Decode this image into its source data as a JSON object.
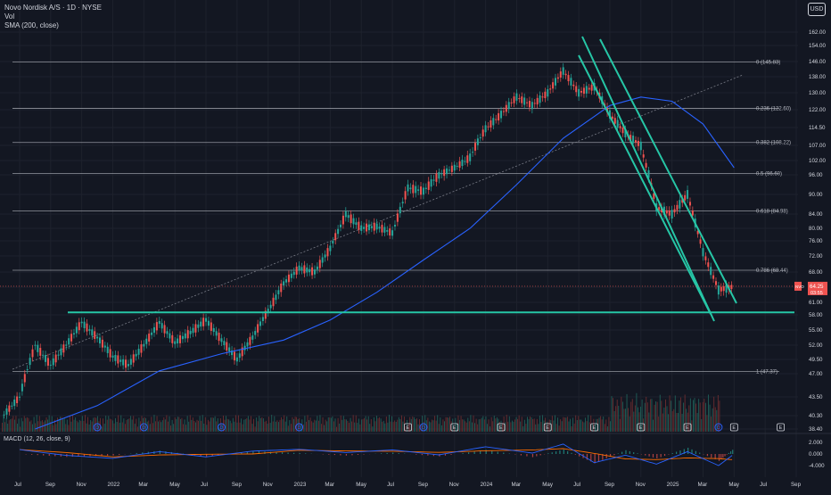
{
  "header": {
    "symbol_title": "Novo Nordisk A/S · 1D · NYSE",
    "vol_label": "Vol",
    "sma_label": "SMA (200, close)",
    "currency_button": "USD",
    "macd_label": "MACD (12, 26, close, 9)"
  },
  "colors": {
    "background": "#131722",
    "up_candle": "#26a69a",
    "down_candle": "#ef5350",
    "sma_line": "#2962ff",
    "fib_line": "#b2b5be",
    "channel_lines": "#26c6a6",
    "support_line": "#26c6a6",
    "trend_line": "#787b86",
    "macd_line": "#2962ff",
    "signal_line": "#ff6d00",
    "price_label_bg": "#ef5350"
  },
  "chart_data": {
    "type": "candlestick",
    "title": "Novo Nordisk A/S · 1D · NYSE",
    "price_scale_ticks": [
      "162.00",
      "154.00",
      "146.00",
      "138.00",
      "130.00",
      "122.00",
      "114.50",
      "107.00",
      "102.00",
      "96.00",
      "90.00",
      "84.00",
      "80.00",
      "76.00",
      "72.00",
      "68.00",
      "64.00",
      "61.00",
      "58.00",
      "55.00",
      "52.00",
      "49.50",
      "47.00",
      "43.50",
      "40.30",
      "38.40"
    ],
    "time_axis_labels": [
      "Jul",
      "Sep",
      "Nov",
      "2022",
      "Mar",
      "May",
      "Jul",
      "Sep",
      "Nov",
      "2023",
      "Mar",
      "May",
      "Jul",
      "Sep",
      "Nov",
      "2024",
      "Mar",
      "May",
      "Jul",
      "Sep",
      "Nov",
      "2025",
      "Mar",
      "May",
      "Jul",
      "Sep"
    ],
    "fibonacci_levels": [
      {
        "label": "0 (145.83)",
        "price": 145.83
      },
      {
        "label": "0.236 (122.60)",
        "price": 122.6
      },
      {
        "label": "0.382 (108.22)",
        "price": 108.22
      },
      {
        "label": "0.5 (96.60)",
        "price": 96.6
      },
      {
        "label": "0.618 (84.98)",
        "price": 84.98
      },
      {
        "label": "0.786 (68.44)",
        "price": 68.44
      },
      {
        "label": "1 (47.37)",
        "price": 47.37
      }
    ],
    "support_level": 58.6,
    "last_price": {
      "ticker": "NVO",
      "price": "64.25",
      "countdown": "03:55"
    },
    "price_series": [
      {
        "date": "2021-06",
        "close": 40.5
      },
      {
        "date": "2021-07",
        "close": 43.5
      },
      {
        "date": "2021-08",
        "close": 52.0
      },
      {
        "date": "2021-09",
        "close": 48.5
      },
      {
        "date": "2021-10",
        "close": 52.0
      },
      {
        "date": "2021-11",
        "close": 56.5
      },
      {
        "date": "2021-12",
        "close": 53.5
      },
      {
        "date": "2022-01",
        "close": 50.0
      },
      {
        "date": "2022-02",
        "close": 48.5
      },
      {
        "date": "2022-03",
        "close": 52.0
      },
      {
        "date": "2022-04",
        "close": 56.5
      },
      {
        "date": "2022-05",
        "close": 52.5
      },
      {
        "date": "2022-06",
        "close": 54.5
      },
      {
        "date": "2022-07",
        "close": 57.0
      },
      {
        "date": "2022-08",
        "close": 53.0
      },
      {
        "date": "2022-09",
        "close": 49.5
      },
      {
        "date": "2022-10",
        "close": 53.5
      },
      {
        "date": "2022-11",
        "close": 59.0
      },
      {
        "date": "2022-12",
        "close": 65.0
      },
      {
        "date": "2023-01",
        "close": 69.0
      },
      {
        "date": "2023-02",
        "close": 68.0
      },
      {
        "date": "2023-03",
        "close": 74.0
      },
      {
        "date": "2023-04",
        "close": 84.0
      },
      {
        "date": "2023-05",
        "close": 80.0
      },
      {
        "date": "2023-06",
        "close": 80.5
      },
      {
        "date": "2023-07",
        "close": 78.5
      },
      {
        "date": "2023-08",
        "close": 92.0
      },
      {
        "date": "2023-09",
        "close": 91.0
      },
      {
        "date": "2023-10",
        "close": 96.0
      },
      {
        "date": "2023-11",
        "close": 99.0
      },
      {
        "date": "2023-12",
        "close": 103.0
      },
      {
        "date": "2024-01",
        "close": 114.0
      },
      {
        "date": "2024-02",
        "close": 120.0
      },
      {
        "date": "2024-03",
        "close": 128.0
      },
      {
        "date": "2024-04",
        "close": 124.0
      },
      {
        "date": "2024-05",
        "close": 130.0
      },
      {
        "date": "2024-06",
        "close": 141.0
      },
      {
        "date": "2024-07",
        "close": 130.0
      },
      {
        "date": "2024-08",
        "close": 133.0
      },
      {
        "date": "2024-09",
        "close": 120.0
      },
      {
        "date": "2024-10",
        "close": 112.0
      },
      {
        "date": "2024-11",
        "close": 107.0
      },
      {
        "date": "2024-12",
        "close": 86.0
      },
      {
        "date": "2025-01",
        "close": 84.0
      },
      {
        "date": "2025-02",
        "close": 90.0
      },
      {
        "date": "2025-03",
        "close": 73.0
      },
      {
        "date": "2025-04",
        "close": 63.5
      },
      {
        "date": "2025-05",
        "close": 64.25
      }
    ],
    "sma_200_series": [
      {
        "date": "2021-08",
        "value": 38.4
      },
      {
        "date": "2021-12",
        "value": 42.0
      },
      {
        "date": "2022-04",
        "value": 47.5
      },
      {
        "date": "2022-08",
        "value": 50.5
      },
      {
        "date": "2022-12",
        "value": 53.0
      },
      {
        "date": "2023-03",
        "value": 57.0
      },
      {
        "date": "2023-06",
        "value": 63.0
      },
      {
        "date": "2023-09",
        "value": 71.0
      },
      {
        "date": "2023-12",
        "value": 80.0
      },
      {
        "date": "2024-03",
        "value": 93.0
      },
      {
        "date": "2024-06",
        "value": 110.0
      },
      {
        "date": "2024-09",
        "value": 124.0
      },
      {
        "date": "2024-11",
        "value": 128.0
      },
      {
        "date": "2025-01",
        "value": 126.0
      },
      {
        "date": "2025-03",
        "value": 116.0
      },
      {
        "date": "2025-05",
        "value": 99.0
      }
    ],
    "macd_ticks": [
      "2.000",
      "0.000",
      "-4.000"
    ],
    "macd_series": [
      {
        "date": "2021-07",
        "macd": 1.5
      },
      {
        "date": "2021-10",
        "macd": -0.5
      },
      {
        "date": "2022-01",
        "macd": -1.5
      },
      {
        "date": "2022-04",
        "macd": 0.8
      },
      {
        "date": "2022-07",
        "macd": -1.0
      },
      {
        "date": "2022-10",
        "macd": 1.0
      },
      {
        "date": "2023-01",
        "macd": 1.6
      },
      {
        "date": "2023-04",
        "macd": 0.5
      },
      {
        "date": "2023-07",
        "macd": 1.4
      },
      {
        "date": "2023-10",
        "macd": -0.3
      },
      {
        "date": "2024-01",
        "macd": 2.5
      },
      {
        "date": "2024-04",
        "macd": 0.3
      },
      {
        "date": "2024-06",
        "macd": 3.4
      },
      {
        "date": "2024-08",
        "macd": -3.0
      },
      {
        "date": "2024-10",
        "macd": -0.4
      },
      {
        "date": "2024-12",
        "macd": -3.5
      },
      {
        "date": "2025-02",
        "macd": 0.8
      },
      {
        "date": "2025-04",
        "macd": -4.0
      },
      {
        "date": "2025-05",
        "macd": 0.0
      }
    ],
    "event_markers": [
      {
        "date": "2021-12",
        "kind": "D"
      },
      {
        "date": "2022-03",
        "kind": "D"
      },
      {
        "date": "2022-08",
        "kind": "D"
      },
      {
        "date": "2023-01",
        "kind": "D"
      },
      {
        "date": "2023-08",
        "kind": "E"
      },
      {
        "date": "2023-09",
        "kind": "D"
      },
      {
        "date": "2023-11",
        "kind": "E"
      },
      {
        "date": "2024-02",
        "kind": "E"
      },
      {
        "date": "2024-05",
        "kind": "E"
      },
      {
        "date": "2024-08",
        "kind": "E"
      },
      {
        "date": "2024-11",
        "kind": "E"
      },
      {
        "date": "2025-02",
        "kind": "E"
      },
      {
        "date": "2025-04",
        "kind": "D"
      },
      {
        "date": "2025-05",
        "kind": "E"
      },
      {
        "date": "2025-08",
        "kind": "E"
      }
    ]
  }
}
